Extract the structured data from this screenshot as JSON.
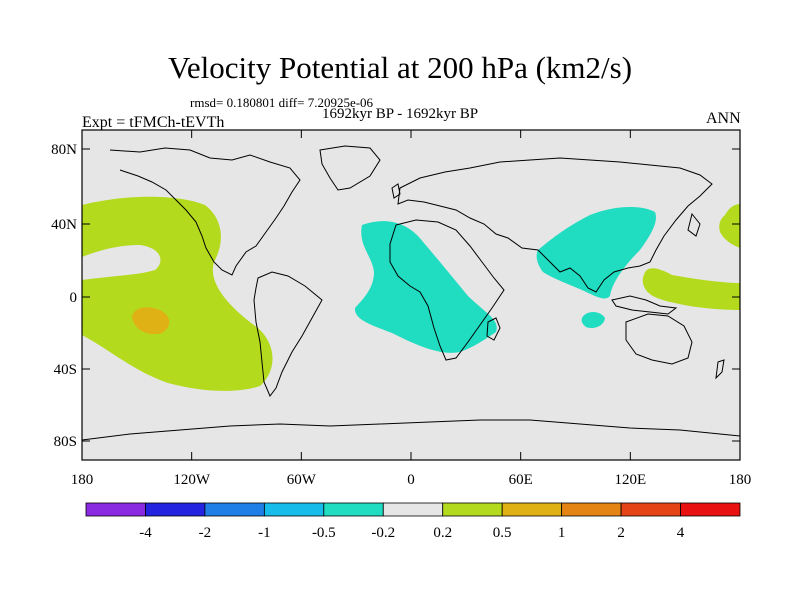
{
  "title": "Velocity Potential at 200 hPa (km2/s)",
  "stats": "rmsd= 0.180801 diff= 7.20925e-06",
  "left_label": "Expt = tFMCh-tEVTh",
  "center_label": "1692kyr BP - 1692kyr BP",
  "right_label": "ANN",
  "map": {
    "lat_ticks": [
      "80N",
      "40N",
      "0",
      "40S",
      "80S"
    ],
    "lon_ticks": [
      "180",
      "120W",
      "60W",
      "0",
      "60E",
      "120E",
      "180"
    ],
    "background_color": "#e6e6e6",
    "land_outline_color": "#000000"
  },
  "colorbar": {
    "colors": [
      "#8a2be2",
      "#2323e0",
      "#1f7fe6",
      "#17bcea",
      "#20dcc1",
      "#e6e6e6",
      "#b4da1e",
      "#e0b114",
      "#e38415",
      "#e54516",
      "#e81010"
    ],
    "labels": [
      "-4",
      "-2",
      "-1",
      "-0.5",
      "-0.2",
      "0.2",
      "0.5",
      "1",
      "2",
      "4"
    ]
  },
  "regions": [
    {
      "name": "pacific-positive",
      "color": "#b4da1e"
    },
    {
      "name": "pacific-positive-local-max",
      "color": "#e0b114"
    },
    {
      "name": "atlantic-africa-negative",
      "color": "#20dcc1"
    },
    {
      "name": "asia-negative",
      "color": "#20dcc1"
    },
    {
      "name": "indian-ocean-negative-spot",
      "color": "#20dcc1"
    },
    {
      "name": "west-pacific-positive",
      "color": "#b4da1e"
    },
    {
      "name": "far-east-positive",
      "color": "#b4da1e"
    }
  ]
}
